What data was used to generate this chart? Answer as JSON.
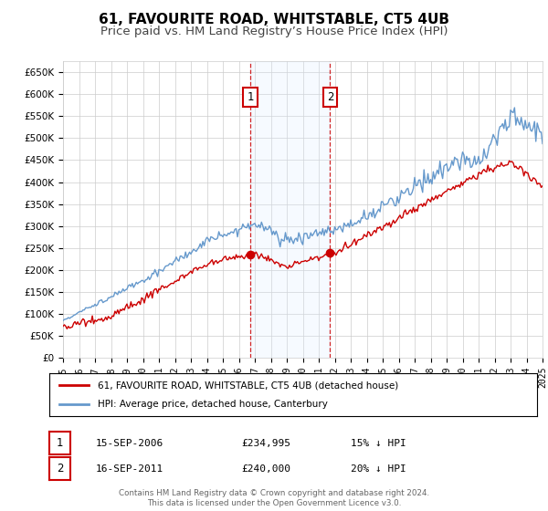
{
  "title": "61, FAVOURITE ROAD, WHITSTABLE, CT5 4UB",
  "subtitle": "Price paid vs. HM Land Registry’s House Price Index (HPI)",
  "ylabel_ticks": [
    "£0",
    "£50K",
    "£100K",
    "£150K",
    "£200K",
    "£250K",
    "£300K",
    "£350K",
    "£400K",
    "£450K",
    "£500K",
    "£550K",
    "£600K",
    "£650K"
  ],
  "ytick_values": [
    0,
    50000,
    100000,
    150000,
    200000,
    250000,
    300000,
    350000,
    400000,
    450000,
    500000,
    550000,
    600000,
    650000
  ],
  "ylim": [
    0,
    675000
  ],
  "x_start_year": 1995,
  "x_end_year": 2025,
  "hpi_color": "#6699cc",
  "price_color": "#cc0000",
  "sale1_year": 2006.71,
  "sale1_price": 234995,
  "sale2_year": 2011.71,
  "sale2_price": 240000,
  "shade_color": "#ddeeff",
  "dashed_color": "#cc0000",
  "background_color": "#ffffff",
  "grid_color": "#cccccc",
  "legend_label_red": "61, FAVOURITE ROAD, WHITSTABLE, CT5 4UB (detached house)",
  "legend_label_blue": "HPI: Average price, detached house, Canterbury",
  "annotation1_label": "1",
  "annotation2_label": "2",
  "table_row1": [
    "1",
    "15-SEP-2006",
    "£234,995",
    "15% ↓ HPI"
  ],
  "table_row2": [
    "2",
    "16-SEP-2011",
    "£240,000",
    "20% ↓ HPI"
  ],
  "footer": "Contains HM Land Registry data © Crown copyright and database right 2024.\nThis data is licensed under the Open Government Licence v3.0.",
  "title_fontsize": 11,
  "subtitle_fontsize": 9.5
}
